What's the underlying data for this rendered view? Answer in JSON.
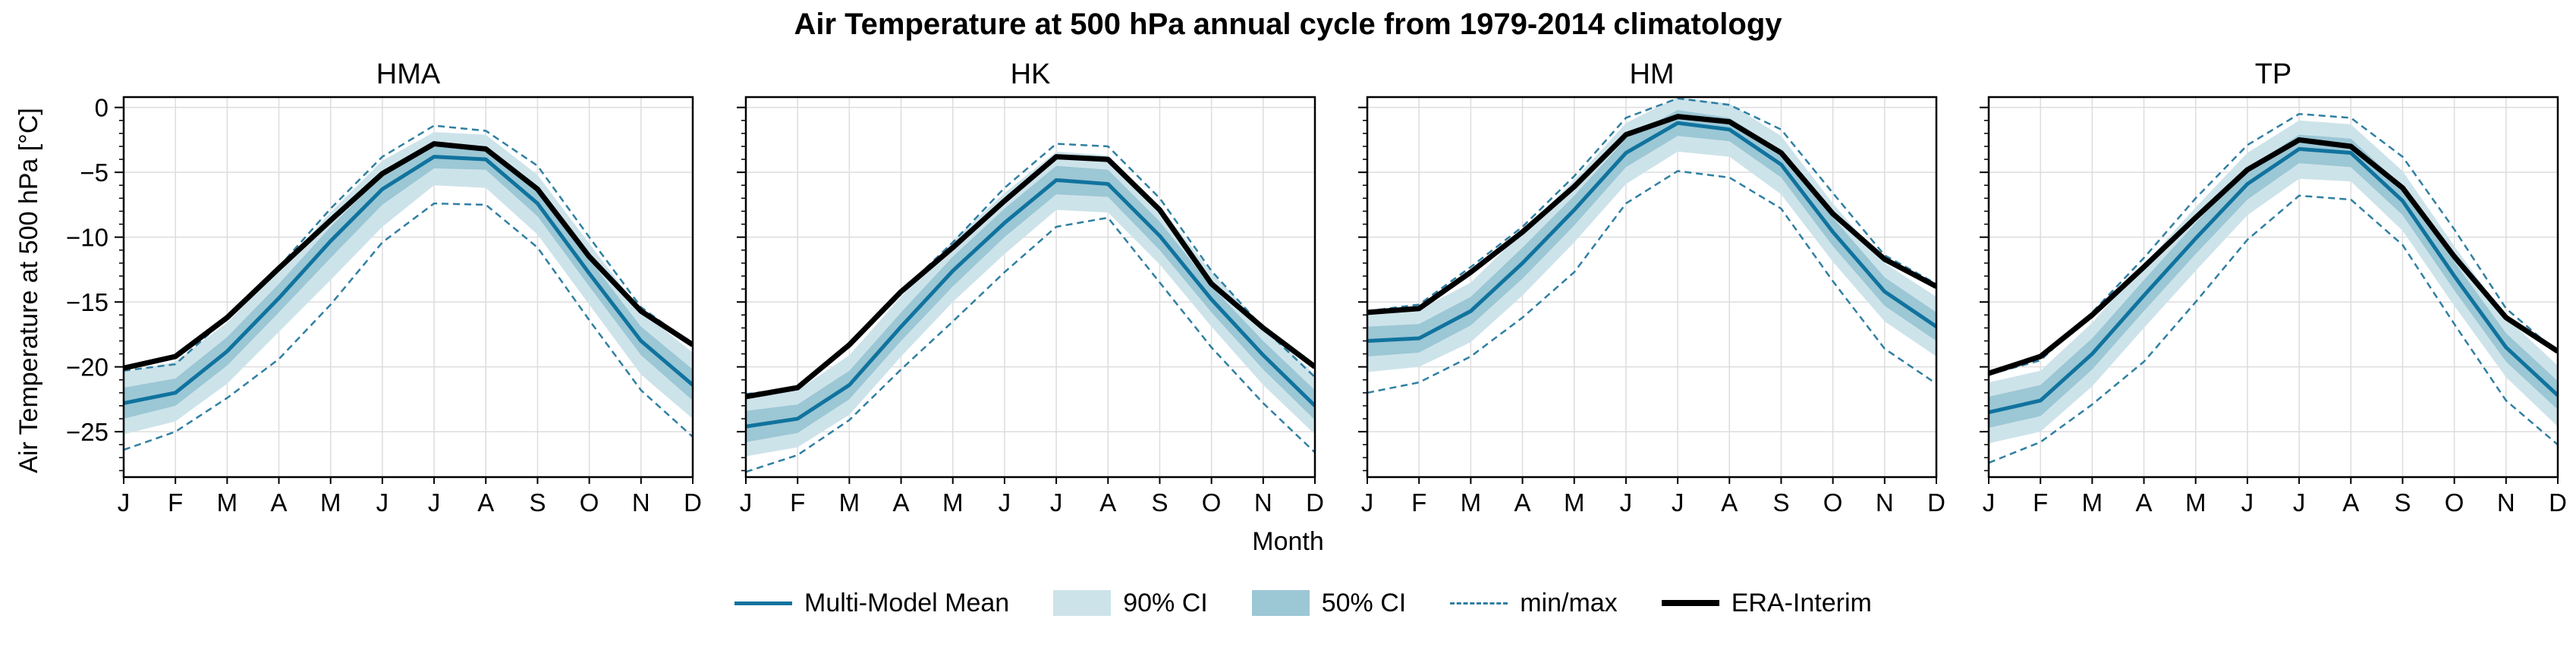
{
  "figure": {
    "suptitle": "Air Temperature at 500 hPa annual cycle from 1979-2014 climatology",
    "ylabel": "Air Temperature at 500 hPa [°C]",
    "xlabel": "Month"
  },
  "colors": {
    "mean": "#10739e",
    "ci90": "#cde3ea",
    "ci50": "#9cc7d5",
    "minmax": "#2f7fa3",
    "era": "#000000",
    "grid": "#dddddd"
  },
  "legend": {
    "placement": "bottom-center",
    "entries": [
      {
        "key": "mean",
        "label": "Multi-Model Mean"
      },
      {
        "key": "ci90",
        "label": "90% CI"
      },
      {
        "key": "ci50",
        "label": "50% CI"
      },
      {
        "key": "minmax",
        "label": "min/max"
      },
      {
        "key": "era",
        "label": "ERA-Interim"
      }
    ]
  },
  "chart_data": [
    {
      "type": "line",
      "title": "HMA",
      "x": [
        "J",
        "F",
        "M",
        "A",
        "M",
        "J",
        "J",
        "A",
        "S",
        "O",
        "N",
        "D"
      ],
      "ylim": [
        -28.5,
        0.8
      ],
      "yticks": [
        0,
        -5,
        -10,
        -15,
        -20,
        -25
      ],
      "grid": true,
      "series": [
        {
          "name": "Multi-Model Mean",
          "values": [
            -22.8,
            -22.0,
            -18.8,
            -14.7,
            -10.3,
            -6.3,
            -3.8,
            -4.0,
            -7.4,
            -12.8,
            -18.0,
            -21.4
          ]
        },
        {
          "name": "90% CI",
          "lower": [
            -25.2,
            -24.2,
            -21.3,
            -17.3,
            -13.3,
            -9.2,
            -6.0,
            -6.2,
            -9.8,
            -15.2,
            -20.6,
            -24.0
          ],
          "upper": [
            -20.4,
            -19.6,
            -16.6,
            -12.5,
            -8.1,
            -4.1,
            -1.9,
            -2.1,
            -5.2,
            -10.5,
            -15.7,
            -18.9
          ]
        },
        {
          "name": "50% CI",
          "lower": [
            -24.0,
            -23.0,
            -19.9,
            -15.8,
            -11.6,
            -7.5,
            -4.7,
            -4.8,
            -8.4,
            -13.8,
            -19.1,
            -22.6
          ],
          "upper": [
            -21.6,
            -20.9,
            -17.7,
            -13.6,
            -9.2,
            -5.2,
            -3.0,
            -3.2,
            -6.4,
            -11.7,
            -16.9,
            -20.2
          ]
        },
        {
          "name": "min/max",
          "lower": [
            -26.4,
            -25.0,
            -22.4,
            -19.4,
            -15.2,
            -10.4,
            -7.4,
            -7.5,
            -10.8,
            -16.4,
            -21.8,
            -25.4
          ],
          "upper": [
            -20.3,
            -19.8,
            -16.2,
            -12.3,
            -7.8,
            -3.8,
            -1.4,
            -1.8,
            -4.5,
            -10.0,
            -15.4,
            -18.3
          ]
        },
        {
          "name": "ERA-Interim",
          "values": [
            -20.1,
            -19.2,
            -16.2,
            -12.4,
            -8.7,
            -5.1,
            -2.8,
            -3.2,
            -6.3,
            -11.5,
            -15.7,
            -18.3
          ]
        }
      ]
    },
    {
      "type": "line",
      "title": "HK",
      "x": [
        "J",
        "F",
        "M",
        "A",
        "M",
        "J",
        "J",
        "A",
        "S",
        "O",
        "N",
        "D"
      ],
      "ylim": [
        -28.5,
        0.8
      ],
      "yticks": [
        0,
        -5,
        -10,
        -15,
        -20,
        -25
      ],
      "grid": true,
      "series": [
        {
          "name": "Multi-Model Mean",
          "values": [
            -24.6,
            -24.0,
            -21.4,
            -16.9,
            -12.6,
            -8.9,
            -5.6,
            -5.9,
            -9.9,
            -14.8,
            -19.1,
            -23.0
          ]
        },
        {
          "name": "90% CI",
          "lower": [
            -26.9,
            -26.2,
            -23.7,
            -19.2,
            -15.0,
            -11.3,
            -7.9,
            -8.1,
            -12.1,
            -16.9,
            -21.4,
            -25.2
          ],
          "upper": [
            -22.3,
            -21.8,
            -19.1,
            -14.6,
            -10.3,
            -6.6,
            -3.4,
            -3.7,
            -7.6,
            -12.7,
            -16.9,
            -20.6
          ]
        },
        {
          "name": "50% CI",
          "lower": [
            -25.8,
            -25.1,
            -22.5,
            -18.0,
            -13.8,
            -10.0,
            -6.7,
            -6.9,
            -11.0,
            -15.8,
            -20.2,
            -24.1
          ],
          "upper": [
            -23.4,
            -22.9,
            -20.3,
            -15.8,
            -11.5,
            -7.8,
            -4.5,
            -4.8,
            -8.8,
            -13.8,
            -18.0,
            -21.8
          ]
        },
        {
          "name": "min/max",
          "lower": [
            -28.1,
            -26.8,
            -24.1,
            -20.2,
            -16.5,
            -12.7,
            -9.2,
            -8.5,
            -13.5,
            -18.5,
            -22.8,
            -26.6
          ],
          "upper": [
            -22.1,
            -21.6,
            -18.4,
            -14.2,
            -10.4,
            -6.2,
            -2.8,
            -3.0,
            -7.0,
            -12.6,
            -17.0,
            -20.8
          ]
        },
        {
          "name": "ERA-Interim",
          "values": [
            -22.3,
            -21.6,
            -18.3,
            -14.2,
            -10.8,
            -7.2,
            -3.8,
            -4.0,
            -7.9,
            -13.6,
            -17.0,
            -20.0
          ]
        }
      ]
    },
    {
      "type": "line",
      "title": "HM",
      "x": [
        "J",
        "F",
        "M",
        "A",
        "M",
        "J",
        "J",
        "A",
        "S",
        "O",
        "N",
        "D"
      ],
      "ylim": [
        -28.5,
        0.8
      ],
      "yticks": [
        0,
        -5,
        -10,
        -15,
        -20,
        -25
      ],
      "grid": true,
      "series": [
        {
          "name": "Multi-Model Mean",
          "values": [
            -18.0,
            -17.8,
            -15.7,
            -12.0,
            -7.9,
            -3.5,
            -1.2,
            -1.7,
            -4.4,
            -9.6,
            -14.2,
            -16.9
          ]
        },
        {
          "name": "90% CI",
          "lower": [
            -20.4,
            -20.0,
            -18.1,
            -14.5,
            -10.4,
            -5.9,
            -3.4,
            -3.8,
            -6.7,
            -11.9,
            -16.5,
            -19.2
          ],
          "upper": [
            -15.8,
            -15.6,
            -13.5,
            -9.6,
            -5.6,
            -1.2,
            0.8,
            0.3,
            -2.2,
            -7.4,
            -12.0,
            -14.6
          ]
        },
        {
          "name": "50% CI",
          "lower": [
            -19.2,
            -18.9,
            -16.8,
            -13.2,
            -9.1,
            -4.6,
            -2.2,
            -2.6,
            -5.4,
            -10.7,
            -15.3,
            -18.0
          ],
          "upper": [
            -16.9,
            -16.7,
            -14.6,
            -10.8,
            -6.8,
            -2.4,
            -0.2,
            -0.8,
            -3.3,
            -8.5,
            -13.1,
            -15.8
          ]
        },
        {
          "name": "min/max",
          "lower": [
            -22.0,
            -21.2,
            -19.2,
            -16.2,
            -12.7,
            -7.4,
            -4.9,
            -5.4,
            -7.8,
            -13.4,
            -18.6,
            -21.3
          ],
          "upper": [
            -15.7,
            -15.2,
            -12.3,
            -9.2,
            -5.3,
            -0.8,
            0.7,
            0.2,
            -1.7,
            -6.6,
            -11.4,
            -13.6
          ]
        },
        {
          "name": "ERA-Interim",
          "values": [
            -15.8,
            -15.5,
            -12.7,
            -9.6,
            -6.1,
            -2.1,
            -0.7,
            -1.1,
            -3.5,
            -8.2,
            -11.7,
            -13.8
          ]
        }
      ]
    },
    {
      "type": "line",
      "title": "TP",
      "x": [
        "J",
        "F",
        "M",
        "A",
        "M",
        "J",
        "J",
        "A",
        "S",
        "O",
        "N",
        "D"
      ],
      "ylim": [
        -28.5,
        0.8
      ],
      "yticks": [
        0,
        -5,
        -10,
        -15,
        -20,
        -25
      ],
      "grid": true,
      "series": [
        {
          "name": "Multi-Model Mean",
          "values": [
            -23.5,
            -22.6,
            -19.0,
            -14.5,
            -10.1,
            -5.9,
            -3.2,
            -3.5,
            -7.2,
            -13.0,
            -18.5,
            -22.2
          ]
        },
        {
          "name": "90% CI",
          "lower": [
            -25.9,
            -25.0,
            -21.5,
            -17.0,
            -12.6,
            -8.3,
            -5.5,
            -5.7,
            -9.5,
            -15.3,
            -20.8,
            -24.6
          ],
          "upper": [
            -21.2,
            -20.3,
            -16.6,
            -12.1,
            -7.7,
            -3.5,
            -1.0,
            -1.3,
            -4.9,
            -10.7,
            -16.2,
            -19.9
          ]
        },
        {
          "name": "50% CI",
          "lower": [
            -24.7,
            -23.8,
            -20.2,
            -15.7,
            -11.3,
            -7.1,
            -4.3,
            -4.6,
            -8.3,
            -14.1,
            -19.6,
            -23.3
          ],
          "upper": [
            -22.3,
            -21.4,
            -17.8,
            -13.3,
            -8.9,
            -4.7,
            -2.1,
            -2.4,
            -6.1,
            -11.9,
            -17.4,
            -21.1
          ]
        },
        {
          "name": "min/max",
          "lower": [
            -27.4,
            -25.8,
            -22.9,
            -19.6,
            -15.0,
            -10.2,
            -6.8,
            -7.1,
            -10.6,
            -16.7,
            -22.6,
            -26.0
          ],
          "upper": [
            -20.6,
            -19.5,
            -15.8,
            -11.6,
            -7.0,
            -2.9,
            -0.5,
            -0.8,
            -3.8,
            -9.4,
            -15.5,
            -18.9
          ]
        },
        {
          "name": "ERA-Interim",
          "values": [
            -20.5,
            -19.2,
            -16.0,
            -12.3,
            -8.5,
            -4.8,
            -2.5,
            -3.0,
            -6.2,
            -11.5,
            -16.2,
            -18.8
          ]
        }
      ]
    }
  ]
}
